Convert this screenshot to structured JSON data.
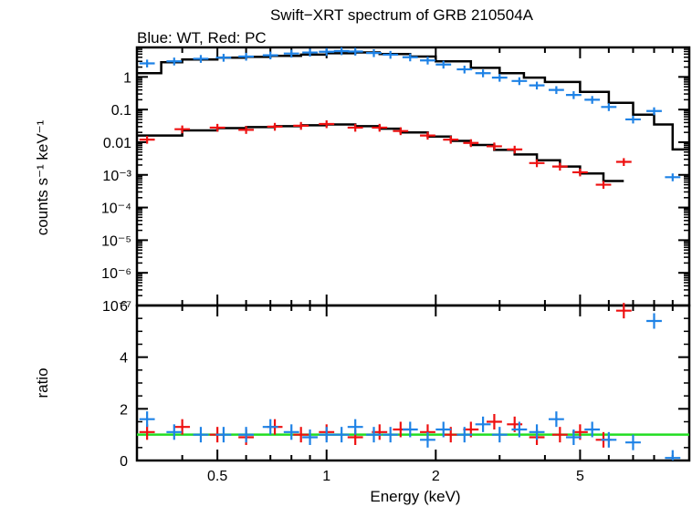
{
  "chart_data": [
    {
      "type": "scatter",
      "title": "Swift−XRT spectrum of GRB 210504A",
      "subtitle": "Blue: WT, Red: PC",
      "xlabel": "",
      "ylabel": "counts s⁻¹ keV⁻¹",
      "xscale": "log",
      "yscale": "log",
      "xlim": [
        0.3,
        10
      ],
      "ylim": [
        1e-07,
        8
      ],
      "y_tick_labels": [
        "1",
        "0.1",
        "0.01",
        "10⁻³",
        "10⁻⁴",
        "10⁻⁵",
        "10⁻⁶",
        "10⁻⁷"
      ],
      "colors": {
        "wt": "#1e82e6",
        "pc": "#ee1111",
        "model": "#000000"
      },
      "series": [
        {
          "name": "WT",
          "x": [
            0.32,
            0.38,
            0.45,
            0.52,
            0.6,
            0.7,
            0.8,
            0.9,
            1.0,
            1.1,
            1.2,
            1.35,
            1.5,
            1.7,
            1.9,
            2.1,
            2.4,
            2.7,
            3.0,
            3.4,
            3.8,
            4.3,
            4.8,
            5.4,
            6.0,
            7.0,
            8.0,
            9.0
          ],
          "y": [
            2.6,
            3.0,
            3.6,
            3.9,
            4.2,
            4.6,
            5.2,
            5.6,
            5.9,
            6.2,
            6.0,
            5.4,
            4.8,
            4.0,
            3.2,
            2.4,
            1.7,
            1.3,
            0.95,
            0.75,
            0.55,
            0.4,
            0.28,
            0.2,
            0.12,
            0.05,
            0.09,
            0.00085
          ]
        },
        {
          "name": "PC",
          "x": [
            0.32,
            0.4,
            0.5,
            0.6,
            0.72,
            0.85,
            1.0,
            1.2,
            1.4,
            1.6,
            1.9,
            2.2,
            2.5,
            2.9,
            3.3,
            3.8,
            4.4,
            5.0,
            5.8,
            6.6
          ],
          "y": [
            0.012,
            0.025,
            0.028,
            0.024,
            0.03,
            0.032,
            0.036,
            0.028,
            0.028,
            0.022,
            0.016,
            0.012,
            0.0095,
            0.0075,
            0.006,
            0.0023,
            0.0018,
            0.0012,
            0.0005,
            0.0025
          ]
        }
      ],
      "model_wt": {
        "x": [
          0.3,
          0.35,
          0.4,
          0.5,
          0.6,
          0.7,
          0.85,
          1.0,
          1.2,
          1.4,
          1.7,
          2.0,
          2.5,
          3.0,
          3.5,
          4.0,
          5.0,
          6.0,
          7.0,
          8.0,
          9.0,
          10.0
        ],
        "y": [
          1.3,
          2.8,
          3.4,
          3.9,
          4.1,
          4.4,
          4.8,
          5.3,
          5.6,
          5.0,
          4.2,
          3.0,
          1.9,
          1.3,
          0.95,
          0.7,
          0.35,
          0.16,
          0.07,
          0.035,
          0.006,
          0.006
        ]
      },
      "model_pc": {
        "x": [
          0.3,
          0.4,
          0.5,
          0.6,
          0.72,
          0.85,
          1.0,
          1.2,
          1.4,
          1.6,
          1.9,
          2.2,
          2.5,
          2.9,
          3.3,
          3.8,
          4.4,
          5.0,
          5.8,
          6.6
        ],
        "y": [
          0.016,
          0.023,
          0.027,
          0.029,
          0.031,
          0.033,
          0.035,
          0.031,
          0.026,
          0.02,
          0.015,
          0.011,
          0.0082,
          0.0058,
          0.0042,
          0.0028,
          0.0018,
          0.0011,
          0.00065,
          0.00036
        ]
      }
    },
    {
      "type": "scatter",
      "xlabel": "Energy (keV)",
      "ylabel": "ratio",
      "xscale": "log",
      "xlim": [
        0.3,
        10
      ],
      "ylim": [
        0,
        6
      ],
      "x_ticks": [
        0.5,
        1,
        2,
        5
      ],
      "x_tick_labels": [
        "0.5",
        "1",
        "2",
        "5"
      ],
      "y_ticks": [
        0,
        2,
        4,
        6
      ],
      "y_tick_labels": [
        "0",
        "2",
        "4",
        "6"
      ],
      "reference_line": {
        "y": 1,
        "color": "#22dd22"
      },
      "series": [
        {
          "name": "WT",
          "x": [
            0.32,
            0.38,
            0.45,
            0.52,
            0.6,
            0.7,
            0.8,
            0.9,
            1.0,
            1.1,
            1.2,
            1.35,
            1.5,
            1.7,
            1.9,
            2.1,
            2.4,
            2.7,
            3.0,
            3.4,
            3.8,
            4.3,
            4.8,
            5.4,
            6.0,
            7.0,
            8.0,
            9.0
          ],
          "y": [
            1.6,
            1.1,
            1.0,
            1.0,
            1.0,
            1.3,
            1.1,
            0.9,
            1.0,
            1.0,
            1.3,
            1.0,
            1.0,
            1.2,
            0.8,
            1.2,
            1.0,
            1.4,
            1.0,
            1.2,
            1.1,
            1.6,
            0.9,
            1.2,
            0.8,
            0.7,
            5.4,
            0.1
          ]
        },
        {
          "name": "PC",
          "x": [
            0.32,
            0.4,
            0.5,
            0.6,
            0.72,
            0.85,
            1.0,
            1.2,
            1.4,
            1.6,
            1.9,
            2.2,
            2.5,
            2.9,
            3.3,
            3.8,
            4.4,
            5.0,
            5.8,
            6.6
          ],
          "y": [
            1.1,
            1.3,
            1.0,
            0.9,
            1.3,
            1.0,
            1.1,
            0.9,
            1.1,
            1.2,
            1.1,
            1.0,
            1.2,
            1.5,
            1.4,
            0.9,
            1.0,
            1.1,
            0.8,
            5.8
          ]
        }
      ]
    }
  ]
}
